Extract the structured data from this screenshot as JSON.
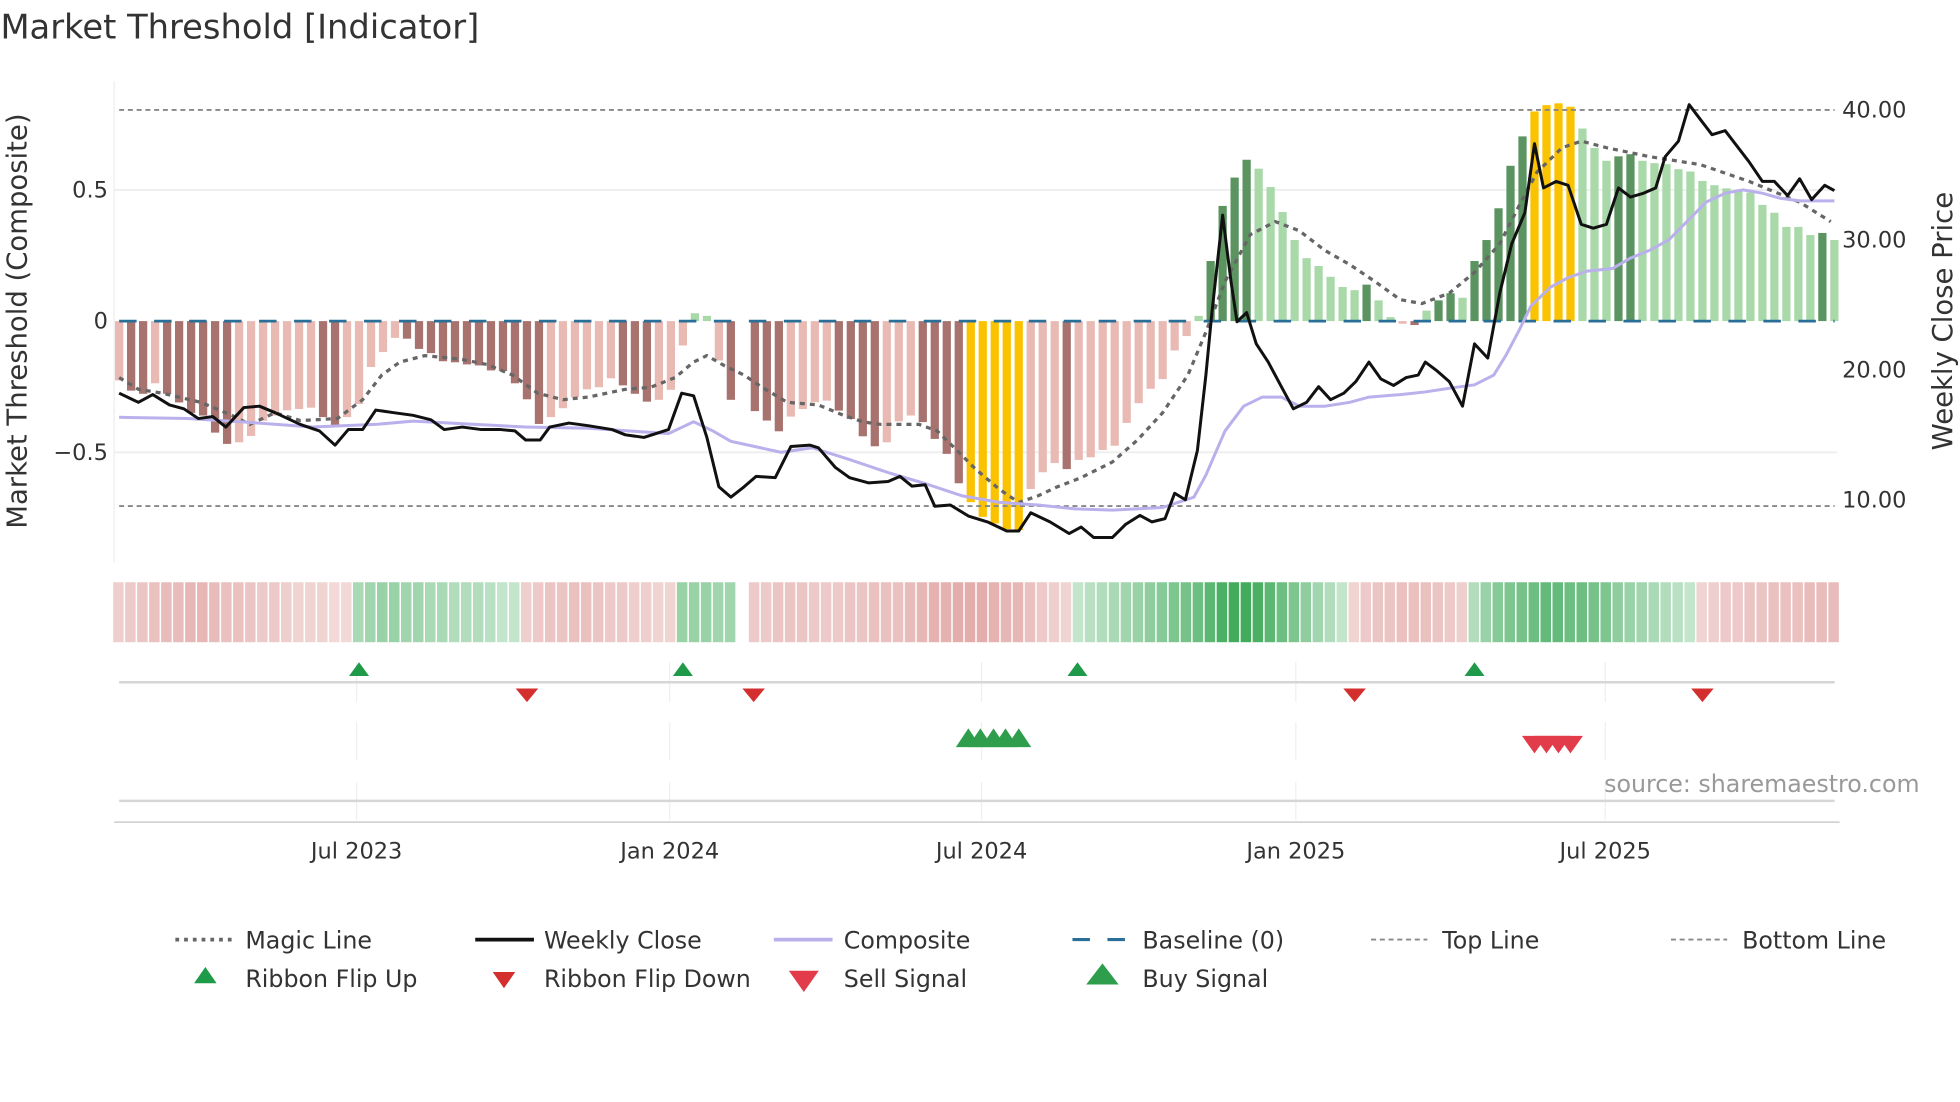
{
  "title": "Market Threshold [Indicator]",
  "source": "source: sharemaestro.com",
  "colors": {
    "bar_dark_red": "#a8726e",
    "bar_light_red": "#e9bab3",
    "bar_dark_green": "#5b9460",
    "bar_light_green": "#a9d9a9",
    "bar_highlight": "#fbc200",
    "weekly_close": "#111111",
    "composite": "#b9b0ec",
    "magic_line": "#666666",
    "baseline": "#2a6f97",
    "ribbon_flip_up": "#1f9a48",
    "ribbon_flip_down": "#d32f2f",
    "buy_signal": "#2e9e4c",
    "sell_signal": "#e23b4a"
  },
  "chart_data": {
    "type": "bar+line",
    "title": "Market Threshold [Indicator]",
    "x_unit": "weeks from start (weekly bars)",
    "ylabel_left": "Market Threshold (Composite)",
    "ylabel_right": "Weekly Close Price",
    "ylim_left": [
      -0.92,
      0.92
    ],
    "ylim_right": [
      5,
      42
    ],
    "yticks_left": [
      {
        "v": 0.5,
        "label": "0.5"
      },
      {
        "v": 0,
        "label": "0"
      },
      {
        "v": -0.5,
        "label": "−0.5"
      }
    ],
    "yticks_right": [
      {
        "v": 40,
        "label": "40.00"
      },
      {
        "v": 30,
        "label": "30.00"
      },
      {
        "v": 20,
        "label": "20.00"
      },
      {
        "v": 10,
        "label": "10.00"
      }
    ],
    "xticks": [
      {
        "w": 19.8,
        "label": "Jul 2023"
      },
      {
        "w": 45.9,
        "label": "Jan 2024"
      },
      {
        "w": 71.9,
        "label": "Jul 2024"
      },
      {
        "w": 98.1,
        "label": "Jan 2025"
      },
      {
        "w": 123.9,
        "label": "Jul 2025"
      }
    ],
    "top_line": 0.8,
    "bottom_line": -0.7,
    "baseline": 0,
    "composite_bars": {
      "values": [
        -0.226,
        -0.265,
        -0.277,
        -0.237,
        -0.277,
        -0.31,
        -0.35,
        -0.36,
        -0.425,
        -0.468,
        -0.462,
        -0.438,
        -0.38,
        -0.36,
        -0.34,
        -0.335,
        -0.33,
        -0.366,
        -0.4,
        -0.366,
        -0.316,
        -0.175,
        -0.118,
        -0.064,
        -0.067,
        -0.106,
        -0.122,
        -0.153,
        -0.157,
        -0.165,
        -0.169,
        -0.188,
        -0.19,
        -0.237,
        -0.298,
        -0.392,
        -0.366,
        -0.332,
        -0.29,
        -0.26,
        -0.252,
        -0.218,
        -0.245,
        -0.277,
        -0.307,
        -0.3,
        -0.262,
        -0.093,
        0.03,
        0.02,
        -0.15,
        -0.3,
        0,
        -0.343,
        -0.379,
        -0.42,
        -0.364,
        -0.335,
        -0.309,
        -0.303,
        -0.341,
        -0.373,
        -0.439,
        -0.477,
        -0.462,
        -0.382,
        -0.36,
        -0.385,
        -0.449,
        -0.506,
        -0.618,
        -0.69,
        -0.746,
        -0.771,
        -0.793,
        -0.796,
        -0.64,
        -0.576,
        -0.541,
        -0.564,
        -0.529,
        -0.519,
        -0.491,
        -0.475,
        -0.388,
        -0.313,
        -0.258,
        -0.221,
        -0.112,
        -0.057,
        0.02,
        0.229,
        0.439,
        0.547,
        0.615,
        0.581,
        0.511,
        0.416,
        0.309,
        0.24,
        0.21,
        0.169,
        0.13,
        0.118,
        0.139,
        0.079,
        0.015,
        -0.01,
        -0.015,
        0.04,
        0.079,
        0.106,
        0.089,
        0.229,
        0.309,
        0.43,
        0.592,
        0.704,
        0.799,
        0.823,
        0.83,
        0.817,
        0.734,
        0.66,
        0.611,
        0.628,
        0.636,
        0.611,
        0.602,
        0.598,
        0.579,
        0.57,
        0.534,
        0.518,
        0.506,
        0.5,
        0.49,
        0.443,
        0.413,
        0.359,
        0.359,
        0.328,
        0.336,
        0.309
      ],
      "shades": "LDDLDDDDDDLLLLLLLDDLLLLLDDDDDDDDDDDDLLLLLLDDDLLLLLLD-DDDLLLLDDDDLLLDDDDYYYYYLLLDLLLLLLLLLLLDDDDLLLLLLLLLDLLLDLDDLDDDDDYYYYLLLDDLLLLLLLLLLLLLLLDL"
    },
    "weekly_close": [
      [
        0,
        18.2
      ],
      [
        1.6,
        17.5
      ],
      [
        2.8,
        18.1
      ],
      [
        4.2,
        17.3
      ],
      [
        5.4,
        17.0
      ],
      [
        6.6,
        16.25
      ],
      [
        7.8,
        16.4
      ],
      [
        8.9,
        15.6
      ],
      [
        10.4,
        17.1
      ],
      [
        11.7,
        17.2
      ],
      [
        13.0,
        16.7
      ],
      [
        15.1,
        15.8
      ],
      [
        16.7,
        15.3
      ],
      [
        18.0,
        14.2
      ],
      [
        19.1,
        15.4
      ],
      [
        20.3,
        15.4
      ],
      [
        21.4,
        16.9
      ],
      [
        22.9,
        16.7
      ],
      [
        24.5,
        16.5
      ],
      [
        26.0,
        16.15
      ],
      [
        27.1,
        15.4
      ],
      [
        28.6,
        15.6
      ],
      [
        30.2,
        15.4
      ],
      [
        31.8,
        15.4
      ],
      [
        33.0,
        15.3
      ],
      [
        33.9,
        14.6
      ],
      [
        35.1,
        14.6
      ],
      [
        35.9,
        15.6
      ],
      [
        37.5,
        15.9
      ],
      [
        39.1,
        15.7
      ],
      [
        41.1,
        15.4
      ],
      [
        42.2,
        15.0
      ],
      [
        43.75,
        14.8
      ],
      [
        45.8,
        15.4
      ],
      [
        46.9,
        18.2
      ],
      [
        47.9,
        18.0
      ],
      [
        49.0,
        14.8
      ],
      [
        50.0,
        11.0
      ],
      [
        51.0,
        10.2
      ],
      [
        52.1,
        11.0
      ],
      [
        53.1,
        11.8
      ],
      [
        54.7,
        11.7
      ],
      [
        56.0,
        14.1
      ],
      [
        57.6,
        14.2
      ],
      [
        58.3,
        14.0
      ],
      [
        59.7,
        12.5
      ],
      [
        60.9,
        11.7
      ],
      [
        62.5,
        11.3
      ],
      [
        64.1,
        11.4
      ],
      [
        65.1,
        11.8
      ],
      [
        66.1,
        11.05
      ],
      [
        67.2,
        11.15
      ],
      [
        68.0,
        9.5
      ],
      [
        69.3,
        9.6
      ],
      [
        70.8,
        8.75
      ],
      [
        72.4,
        8.3
      ],
      [
        74.0,
        7.6
      ],
      [
        75.0,
        7.6
      ],
      [
        76.0,
        9.0
      ],
      [
        77.6,
        8.3
      ],
      [
        79.2,
        7.4
      ],
      [
        80.2,
        7.9
      ],
      [
        81.25,
        7.1
      ],
      [
        82.8,
        7.1
      ],
      [
        83.9,
        8.1
      ],
      [
        85.1,
        8.8
      ],
      [
        86.1,
        8.3
      ],
      [
        87.2,
        8.55
      ],
      [
        88.0,
        10.5
      ],
      [
        88.9,
        10.0
      ],
      [
        89.9,
        13.8
      ],
      [
        90.6,
        19.6
      ],
      [
        91.1,
        24.4
      ],
      [
        92.0,
        31.9
      ],
      [
        92.7,
        26.8
      ],
      [
        93.2,
        23.7
      ],
      [
        94.0,
        24.4
      ],
      [
        94.8,
        22.0
      ],
      [
        95.8,
        20.6
      ],
      [
        96.9,
        18.7
      ],
      [
        97.9,
        17.0
      ],
      [
        99.0,
        17.5
      ],
      [
        100.0,
        18.7
      ],
      [
        101.0,
        17.7
      ],
      [
        102.1,
        18.2
      ],
      [
        103.1,
        19.1
      ],
      [
        104.2,
        20.6
      ],
      [
        105.2,
        19.3
      ],
      [
        106.25,
        18.8
      ],
      [
        107.3,
        19.4
      ],
      [
        108.3,
        19.6
      ],
      [
        108.9,
        20.6
      ],
      [
        109.9,
        19.9
      ],
      [
        110.9,
        19.1
      ],
      [
        112.0,
        17.2
      ],
      [
        113.0,
        22.0
      ],
      [
        114.1,
        20.9
      ],
      [
        115.1,
        25.9
      ],
      [
        116.1,
        29.7
      ],
      [
        117.2,
        32.1
      ],
      [
        118.0,
        37.4
      ],
      [
        118.75,
        34.0
      ],
      [
        119.8,
        34.5
      ],
      [
        120.8,
        34.2
      ],
      [
        121.9,
        31.2
      ],
      [
        122.9,
        30.9
      ],
      [
        124.0,
        31.2
      ],
      [
        125.0,
        34.0
      ],
      [
        126.0,
        33.3
      ],
      [
        127.1,
        33.6
      ],
      [
        128.1,
        34.0
      ],
      [
        128.9,
        36.4
      ],
      [
        130.0,
        37.6
      ],
      [
        130.9,
        40.4
      ],
      [
        131.8,
        39.3
      ],
      [
        132.8,
        38.1
      ],
      [
        133.9,
        38.4
      ],
      [
        134.9,
        37.2
      ],
      [
        135.9,
        36.0
      ],
      [
        137.0,
        34.5
      ],
      [
        138.0,
        34.5
      ],
      [
        139.1,
        33.4
      ],
      [
        140.1,
        34.7
      ],
      [
        141.1,
        33.1
      ],
      [
        142.2,
        34.2
      ],
      [
        143.0,
        33.8
      ]
    ],
    "composite_line": [
      [
        0,
        16.35
      ],
      [
        5.7,
        16.25
      ],
      [
        10.9,
        15.95
      ],
      [
        16.1,
        15.6
      ],
      [
        21.35,
        15.8
      ],
      [
        24.5,
        16.05
      ],
      [
        29.7,
        15.8
      ],
      [
        33.9,
        15.6
      ],
      [
        39.1,
        15.5
      ],
      [
        45.8,
        15.1
      ],
      [
        47.9,
        16.0
      ],
      [
        49.5,
        15.3
      ],
      [
        51.0,
        14.5
      ],
      [
        55.2,
        13.65
      ],
      [
        57.8,
        14.0
      ],
      [
        60.9,
        13.1
      ],
      [
        64.1,
        12.1
      ],
      [
        67.2,
        11.25
      ],
      [
        70.3,
        10.3
      ],
      [
        73.4,
        9.8
      ],
      [
        76.6,
        9.6
      ],
      [
        79.7,
        9.3
      ],
      [
        82.8,
        9.2
      ],
      [
        87.0,
        9.4
      ],
      [
        89.6,
        10.2
      ],
      [
        90.6,
        11.9
      ],
      [
        92.2,
        15.3
      ],
      [
        93.75,
        17.2
      ],
      [
        95.3,
        17.9
      ],
      [
        96.9,
        17.9
      ],
      [
        98.4,
        17.2
      ],
      [
        100.5,
        17.2
      ],
      [
        102.6,
        17.5
      ],
      [
        104.2,
        17.9
      ],
      [
        106.8,
        18.1
      ],
      [
        108.9,
        18.3
      ],
      [
        111.0,
        18.6
      ],
      [
        113.0,
        18.85
      ],
      [
        114.6,
        19.6
      ],
      [
        115.6,
        21.1
      ],
      [
        116.7,
        23.0
      ],
      [
        117.7,
        24.9
      ],
      [
        119.3,
        26.35
      ],
      [
        120.8,
        27.1
      ],
      [
        122.4,
        27.6
      ],
      [
        124.5,
        27.8
      ],
      [
        126.0,
        28.6
      ],
      [
        127.6,
        29.2
      ],
      [
        129.2,
        30.0
      ],
      [
        130.7,
        31.4
      ],
      [
        132.3,
        32.9
      ],
      [
        133.9,
        33.6
      ],
      [
        135.4,
        33.85
      ],
      [
        137.0,
        33.6
      ],
      [
        138.5,
        33.2
      ],
      [
        140.1,
        33.0
      ],
      [
        143.0,
        33.0
      ]
    ],
    "magic_line": [
      [
        0,
        19.4
      ],
      [
        1.6,
        18.5
      ],
      [
        3.6,
        18.2
      ],
      [
        6.8,
        17.5
      ],
      [
        9.4,
        16.5
      ],
      [
        10.9,
        15.8
      ],
      [
        13.0,
        16.7
      ],
      [
        15.1,
        16.1
      ],
      [
        18.2,
        16.25
      ],
      [
        20.3,
        17.7
      ],
      [
        21.9,
        19.6
      ],
      [
        23.4,
        20.6
      ],
      [
        25.5,
        21.1
      ],
      [
        28.6,
        20.8
      ],
      [
        30.7,
        20.4
      ],
      [
        32.8,
        19.6
      ],
      [
        34.9,
        18.2
      ],
      [
        37.0,
        17.7
      ],
      [
        39.1,
        17.9
      ],
      [
        42.2,
        18.5
      ],
      [
        44.3,
        18.65
      ],
      [
        46.35,
        19.4
      ],
      [
        47.9,
        20.6
      ],
      [
        49.0,
        21.1
      ],
      [
        50.5,
        20.3
      ],
      [
        52.1,
        19.6
      ],
      [
        53.6,
        18.65
      ],
      [
        55.7,
        17.5
      ],
      [
        58.3,
        17.3
      ],
      [
        60.4,
        16.5
      ],
      [
        62.0,
        16.0
      ],
      [
        63.5,
        15.8
      ],
      [
        66.7,
        15.8
      ],
      [
        68.2,
        15.3
      ],
      [
        69.8,
        13.85
      ],
      [
        71.35,
        12.4
      ],
      [
        73.4,
        10.8
      ],
      [
        75.0,
        9.8
      ],
      [
        76.6,
        10.3
      ],
      [
        78.1,
        10.95
      ],
      [
        80.2,
        11.7
      ],
      [
        82.8,
        12.9
      ],
      [
        84.9,
        14.6
      ],
      [
        87.0,
        16.7
      ],
      [
        89.1,
        19.6
      ],
      [
        90.6,
        22.9
      ],
      [
        92.2,
        26.8
      ],
      [
        94.3,
        30.4
      ],
      [
        96.4,
        31.4
      ],
      [
        98.4,
        30.7
      ],
      [
        100.5,
        29.2
      ],
      [
        102.6,
        28.1
      ],
      [
        104.7,
        26.8
      ],
      [
        106.8,
        25.4
      ],
      [
        108.6,
        25.1
      ],
      [
        110.9,
        25.9
      ],
      [
        113.0,
        27.5
      ],
      [
        115.1,
        29.7
      ],
      [
        116.7,
        32.6
      ],
      [
        118.2,
        35.2
      ],
      [
        120.3,
        37.1
      ],
      [
        121.9,
        37.6
      ],
      [
        124.0,
        37.1
      ],
      [
        127.6,
        36.4
      ],
      [
        131.8,
        35.8
      ],
      [
        135.9,
        34.5
      ],
      [
        140.1,
        32.9
      ],
      [
        142.7,
        31.4
      ]
    ],
    "ribbon": [
      -0.25,
      -0.3,
      -0.35,
      -0.4,
      -0.45,
      -0.45,
      -0.5,
      -0.5,
      -0.45,
      -0.4,
      -0.4,
      -0.35,
      -0.3,
      -0.3,
      -0.25,
      -0.2,
      -0.2,
      -0.2,
      -0.15,
      -0.15,
      0.35,
      0.4,
      0.45,
      0.45,
      0.4,
      0.4,
      0.35,
      0.35,
      0.3,
      0.3,
      0.3,
      0.25,
      0.2,
      0.2,
      -0.25,
      -0.3,
      -0.35,
      -0.35,
      -0.4,
      -0.4,
      -0.35,
      -0.3,
      -0.3,
      -0.25,
      -0.25,
      -0.2,
      -0.2,
      0.45,
      0.45,
      0.45,
      0.4,
      0.4,
      null,
      -0.3,
      -0.3,
      -0.35,
      -0.35,
      -0.35,
      -0.3,
      -0.3,
      -0.3,
      -0.35,
      -0.35,
      -0.4,
      -0.4,
      -0.4,
      -0.45,
      -0.5,
      -0.55,
      -0.55,
      -0.6,
      -0.6,
      -0.6,
      -0.55,
      -0.5,
      -0.5,
      -0.4,
      -0.3,
      -0.25,
      -0.2,
      0.2,
      0.25,
      0.3,
      0.35,
      0.4,
      0.45,
      0.5,
      0.55,
      0.6,
      0.65,
      0.7,
      0.8,
      0.9,
      0.95,
      0.95,
      0.9,
      0.8,
      0.7,
      0.6,
      0.5,
      0.4,
      0.3,
      0.2,
      -0.2,
      -0.3,
      -0.35,
      -0.35,
      -0.4,
      -0.4,
      -0.4,
      -0.35,
      -0.3,
      -0.25,
      0.3,
      0.45,
      0.55,
      0.6,
      0.65,
      0.7,
      0.75,
      0.75,
      0.7,
      0.7,
      0.65,
      0.6,
      0.5,
      0.45,
      0.4,
      0.35,
      0.3,
      0.25,
      0.2,
      -0.2,
      -0.25,
      -0.3,
      -0.3,
      -0.35,
      -0.35,
      -0.4,
      -0.4,
      -0.4,
      -0.45,
      -0.45,
      -0.45
    ],
    "ribbon_flip_up": [
      20,
      47,
      79.9,
      113
    ],
    "ribbon_flip_down": [
      34,
      52.9,
      103,
      132
    ],
    "buy_signals": [
      70.8,
      71.8,
      72.9,
      73.9,
      75.0
    ],
    "sell_signals": [
      118,
      119,
      120,
      121
    ],
    "legend": {
      "magic_line": "Magic Line",
      "weekly_close": "Weekly Close",
      "composite": "Composite",
      "baseline": "Baseline (0)",
      "top_line": "Top Line",
      "bottom_line": "Bottom Line",
      "ribbon_flip_up": "Ribbon Flip Up",
      "ribbon_flip_down": "Ribbon Flip Down",
      "sell_signal": "Sell Signal",
      "buy_signal": "Buy Signal"
    },
    "legend_position": "bottom"
  }
}
